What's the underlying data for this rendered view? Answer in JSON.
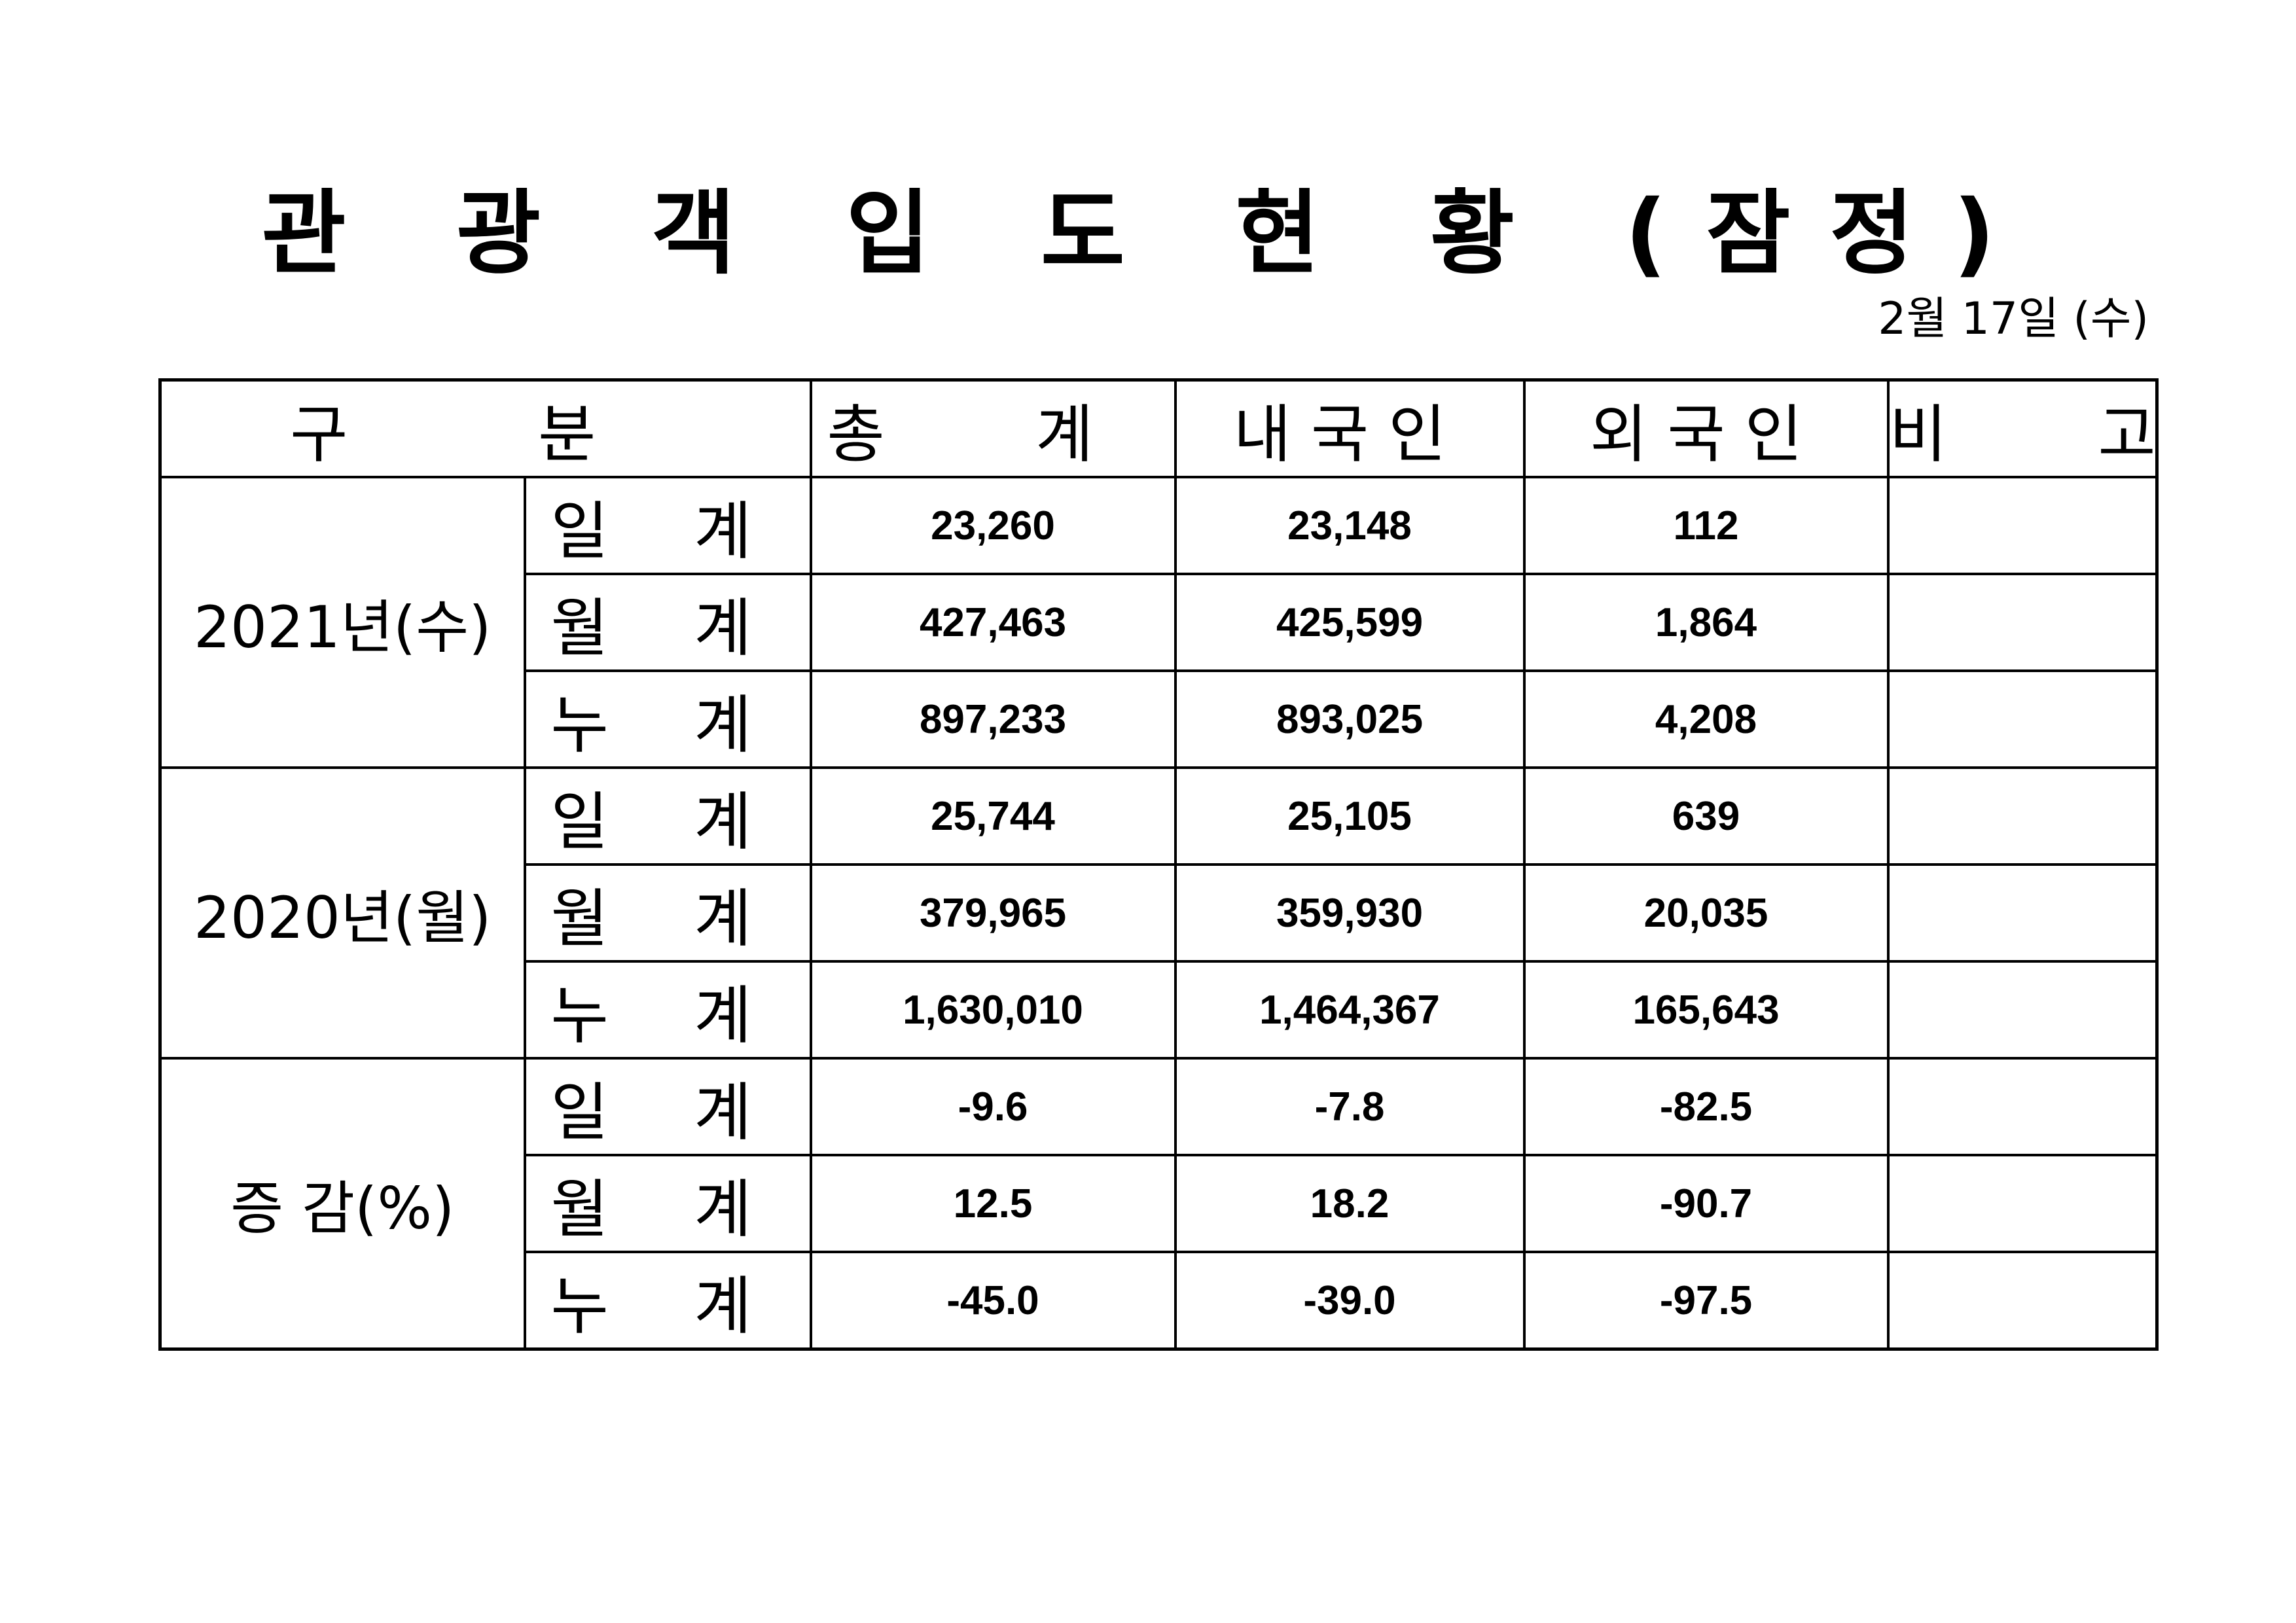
{
  "title": "관 광 객 입 도 현 황 (잠정)",
  "date": "2월 17일 (수)",
  "table": {
    "headers": [
      "구 분",
      "총 계",
      "내국인",
      "외국인",
      "비 고"
    ],
    "groups": [
      {
        "label": "2021년(수)",
        "rows": [
          {
            "label": "일 계",
            "total": "23,260",
            "domestic": "23,148",
            "foreign": "112",
            "note": ""
          },
          {
            "label": "월 계",
            "total": "427,463",
            "domestic": "425,599",
            "foreign": "1,864",
            "note": ""
          },
          {
            "label": "누 계",
            "total": "897,233",
            "domestic": "893,025",
            "foreign": "4,208",
            "note": ""
          }
        ]
      },
      {
        "label": "2020년(월)",
        "rows": [
          {
            "label": "일 계",
            "total": "25,744",
            "domestic": "25,105",
            "foreign": "639",
            "note": ""
          },
          {
            "label": "월 계",
            "total": "379,965",
            "domestic": "359,930",
            "foreign": "20,035",
            "note": ""
          },
          {
            "label": "누 계",
            "total": "1,630,010",
            "domestic": "1,464,367",
            "foreign": "165,643",
            "note": ""
          }
        ]
      },
      {
        "label": "증 감(%)",
        "rows": [
          {
            "label": "일 계",
            "total": "-9.6",
            "domestic": "-7.8",
            "foreign": "-82.5",
            "note": ""
          },
          {
            "label": "월 계",
            "total": "12.5",
            "domestic": "18.2",
            "foreign": "-90.7",
            "note": ""
          },
          {
            "label": "누 계",
            "total": "-45.0",
            "domestic": "-39.0",
            "foreign": "-97.5",
            "note": ""
          }
        ]
      }
    ]
  }
}
